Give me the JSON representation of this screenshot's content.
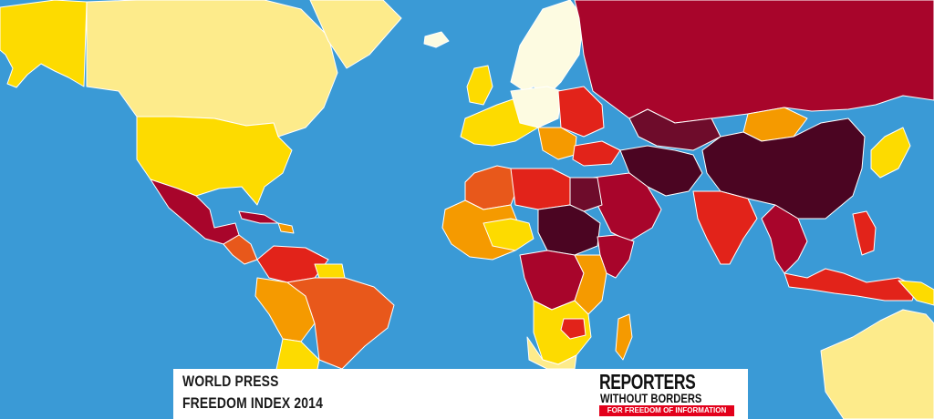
{
  "title": {
    "line1": "WORLD PRESS",
    "line2": "FREEDOM INDEX 2014"
  },
  "logo": {
    "name_line1": "REPORTERS",
    "name_line2": "WITHOUT BORDERS",
    "tagline": "FOR FREEDOM OF INFORMATION"
  },
  "colors": {
    "ocean": "#3a9ad6",
    "good": "#fdfbe1",
    "satisfactory": "#fdeb8b",
    "noticeable_problems": "#fddb00",
    "difficult": "#f59a00",
    "difficult_orange": "#e8581b",
    "bad": "#e2231a",
    "very_serious": "#a8052b",
    "very_serious_dark": "#4b0522",
    "logo_red": "#e3001b"
  }
}
